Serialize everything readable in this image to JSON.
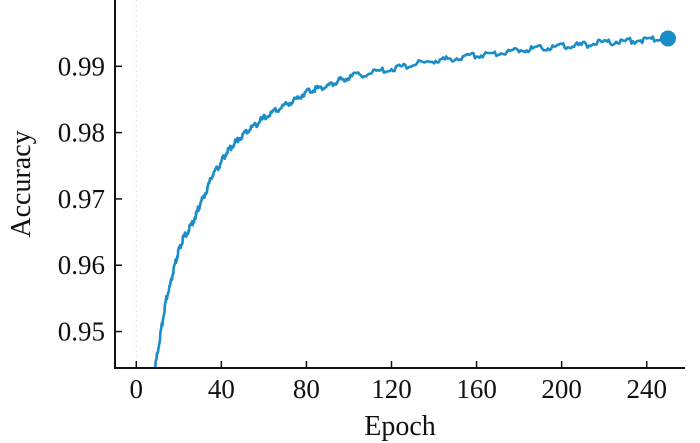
{
  "chart_data": {
    "type": "line",
    "title": "",
    "xlabel": "Epoch",
    "ylabel": "Accuracy",
    "xlim": [
      -10,
      258
    ],
    "ylim": [
      0.9445,
      1.0
    ],
    "x_ticks": [
      0,
      40,
      80,
      120,
      160,
      200,
      240
    ],
    "x_tick_labels": [
      "0",
      "40",
      "80",
      "120",
      "160",
      "200",
      "240"
    ],
    "y_ticks": [
      0.95,
      0.96,
      0.97,
      0.98,
      0.99
    ],
    "y_tick_labels": [
      "0.95",
      "0.96",
      "0.97",
      "0.98",
      "0.99"
    ],
    "grid": false,
    "legend": "none",
    "colors": {
      "line": "#1a8cc8",
      "axis": "#111111"
    },
    "series": [
      {
        "x": [
          8,
          10,
          12,
          14,
          16,
          18,
          20,
          22,
          25,
          28,
          30,
          33,
          36,
          39,
          42,
          45,
          48,
          52,
          56,
          60,
          65,
          70,
          75,
          80,
          85,
          90,
          95,
          100,
          110,
          120,
          130,
          140,
          150,
          160,
          170,
          180,
          190,
          200,
          210,
          220,
          230,
          240,
          250
        ],
        "y": [
          0.943,
          0.9468,
          0.9508,
          0.9548,
          0.957,
          0.9598,
          0.9622,
          0.964,
          0.9655,
          0.9675,
          0.9692,
          0.9712,
          0.9738,
          0.975,
          0.9768,
          0.978,
          0.979,
          0.9802,
          0.9812,
          0.9822,
          0.9832,
          0.9842,
          0.985,
          0.9862,
          0.9867,
          0.987,
          0.9878,
          0.9884,
          0.989,
          0.9896,
          0.9903,
          0.9908,
          0.9912,
          0.9917,
          0.992,
          0.9925,
          0.9928,
          0.993,
          0.9932,
          0.9936,
          0.9938,
          0.994,
          0.9942
        ]
      }
    ],
    "end_marker": {
      "x": 250,
      "y": 0.9942
    }
  }
}
